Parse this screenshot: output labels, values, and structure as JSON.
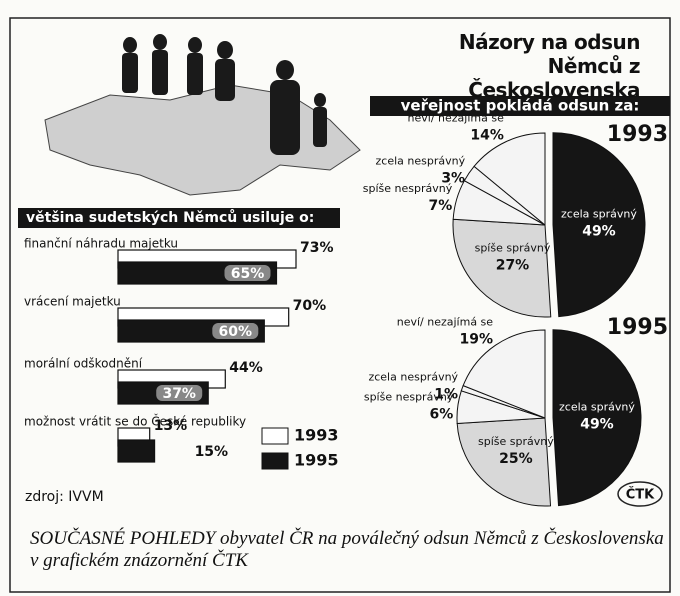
{
  "header": {
    "title": "Názory na odsun Němců z Československa",
    "subtitle": "veřejnost pokládá odsun za:"
  },
  "chart_data": [
    {
      "type": "pie",
      "title": "1993",
      "categories": [
        "zcela správný",
        "spíše správný",
        "spíše nesprávný",
        "zcela nesprávný",
        "neví/ nezajímá se"
      ],
      "values": [
        49,
        27,
        7,
        3,
        14
      ],
      "value_labels": [
        "49%",
        "27%",
        "7%",
        "3%",
        "14%"
      ],
      "colors": [
        "#151515",
        "#d8d8d8",
        "#f4f4f4",
        "#f4f4f4",
        "#f4f4f4"
      ]
    },
    {
      "type": "pie",
      "title": "1995",
      "categories": [
        "zcela správný",
        "spíše správný",
        "spíše nesprávný",
        "zcela nesprávný",
        "neví/ nezajímá se"
      ],
      "values": [
        49,
        25,
        6,
        1,
        19
      ],
      "value_labels": [
        "49%",
        "25%",
        "6%",
        "1%",
        "19%"
      ],
      "colors": [
        "#151515",
        "#d8d8d8",
        "#f4f4f4",
        "#f4f4f4",
        "#f4f4f4"
      ]
    },
    {
      "type": "bar",
      "orientation": "horizontal",
      "title": "většina sudetských Němců usiluje o:",
      "categories": [
        "finanční náhradu majetku",
        "vrácení majetku",
        "morální odškodnění",
        "možnost vrátit se do České republiky"
      ],
      "series": [
        {
          "name": "1993",
          "color": "#ffffff",
          "values": [
            73,
            70,
            44,
            13
          ],
          "value_labels": [
            "73%",
            "70%",
            "44%",
            "13%"
          ]
        },
        {
          "name": "1995",
          "color": "#151515",
          "values": [
            65,
            60,
            37,
            15
          ],
          "value_labels": [
            "65%",
            "60%",
            "37%",
            "15%"
          ]
        }
      ]
    }
  ],
  "footer": {
    "source": "zdroj: IVVM",
    "logo": "ČTK",
    "caption": "SOUČASNÉ POHLEDY obyvatel ČR na poválečný odsun Němců z Československa v grafickém znázornění ČTK"
  }
}
